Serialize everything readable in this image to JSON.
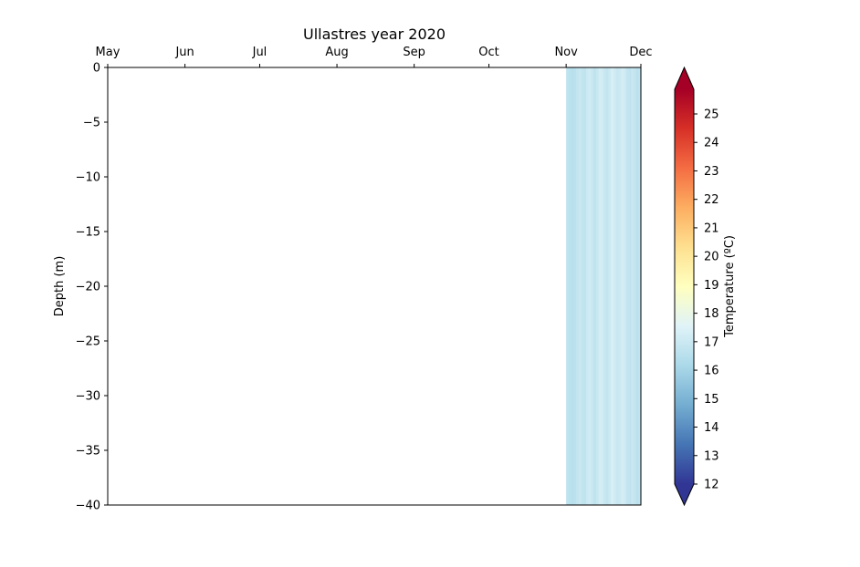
{
  "chart_data": {
    "type": "heatmap",
    "title": "Ullastres year 2020",
    "xlabel": "",
    "ylabel": "Depth (m)",
    "x_ticks": [
      "May",
      "Jun",
      "Jul",
      "Aug",
      "Sep",
      "Oct",
      "Nov",
      "Dec"
    ],
    "x_tick_position": "top",
    "y_ticks": [
      0,
      -5,
      -10,
      -15,
      -20,
      -25,
      -30,
      -35,
      -40
    ],
    "ylim": [
      -40,
      0
    ],
    "xlim": [
      "2020-05-01",
      "2020-12-01"
    ],
    "data_start": "2020-11-01",
    "data_end": "2020-12-01",
    "daily_temperature": [
      16.4,
      16.3,
      16.2,
      16.3,
      16.5,
      16.6,
      16.5,
      16.4,
      16.7,
      16.8,
      16.6,
      16.4,
      16.6,
      16.9,
      16.8,
      16.6,
      16.5,
      16.7,
      17.0,
      16.8,
      16.6,
      16.7,
      16.9,
      16.8,
      16.5,
      16.4,
      16.6,
      16.5,
      16.3,
      16.4
    ],
    "colorbar": {
      "label": "Temperature (ºC)",
      "min": 12,
      "max": 25,
      "ticks": [
        12,
        13,
        14,
        15,
        16,
        17,
        18,
        19,
        20,
        21,
        22,
        23,
        24,
        25
      ],
      "colormap": "RdYlBu_r",
      "extend": "both"
    }
  }
}
